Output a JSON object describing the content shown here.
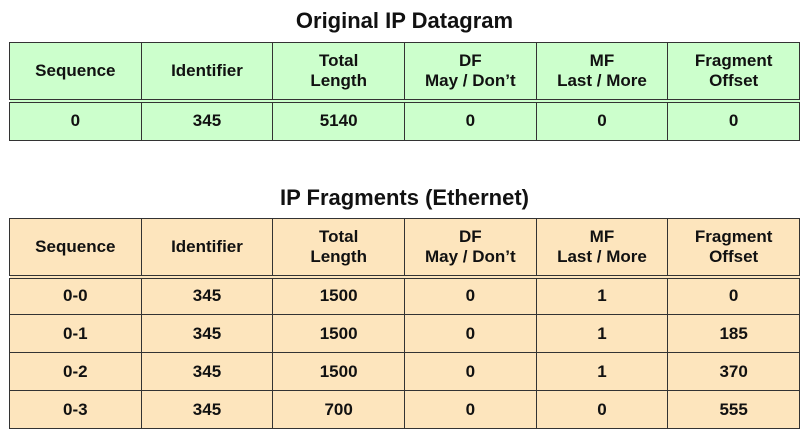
{
  "colors": {
    "original_fill": "#ccffcc",
    "fragments_fill": "#fde5bd",
    "border": "#333333"
  },
  "columns": [
    [
      "Sequence"
    ],
    [
      "Identifier"
    ],
    [
      "Total",
      "Length"
    ],
    [
      "DF",
      "May / Don’t"
    ],
    [
      "MF",
      "Last / More"
    ],
    [
      "Fragment",
      "Offset"
    ]
  ],
  "original": {
    "title": "Original IP Datagram",
    "rows": [
      [
        "0",
        "345",
        "5140",
        "0",
        "0",
        "0"
      ]
    ]
  },
  "fragments": {
    "title": "IP Fragments (Ethernet)",
    "rows": [
      [
        "0-0",
        "345",
        "1500",
        "0",
        "1",
        "0"
      ],
      [
        "0-1",
        "345",
        "1500",
        "0",
        "1",
        "185"
      ],
      [
        "0-2",
        "345",
        "1500",
        "0",
        "1",
        "370"
      ],
      [
        "0-3",
        "345",
        "700",
        "0",
        "0",
        "555"
      ]
    ]
  }
}
